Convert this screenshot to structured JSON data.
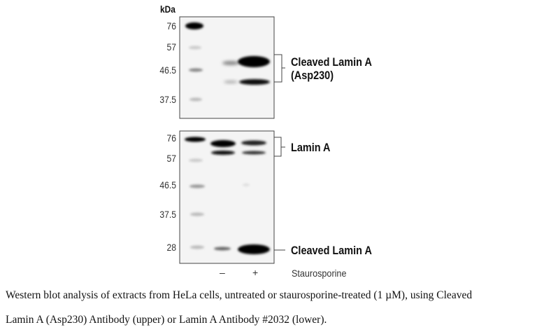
{
  "figure": {
    "unit_label": "kDa",
    "upper_blot": {
      "markers": [
        "76",
        "57",
        "46.5",
        "37.5"
      ],
      "band_label_line1": "Cleaved Lamin A",
      "band_label_line2": "(Asp230)"
    },
    "lower_blot": {
      "markers": [
        "76",
        "57",
        "46.5",
        "37.5",
        "28"
      ],
      "band_label_top": "Lamin A",
      "band_label_bottom": "Cleaved Lamin A"
    },
    "lanes": {
      "minus": "–",
      "plus": "+",
      "treatment": "Staurosporine"
    }
  },
  "caption": {
    "line1": "Western blot analysis of extracts from HeLa cells, untreated or staurosporine-treated (1 µM), using Cleaved",
    "line2": "Lamin A (Asp230) Antibody (upper) or Lamin A Antibody #2032 (lower)."
  }
}
